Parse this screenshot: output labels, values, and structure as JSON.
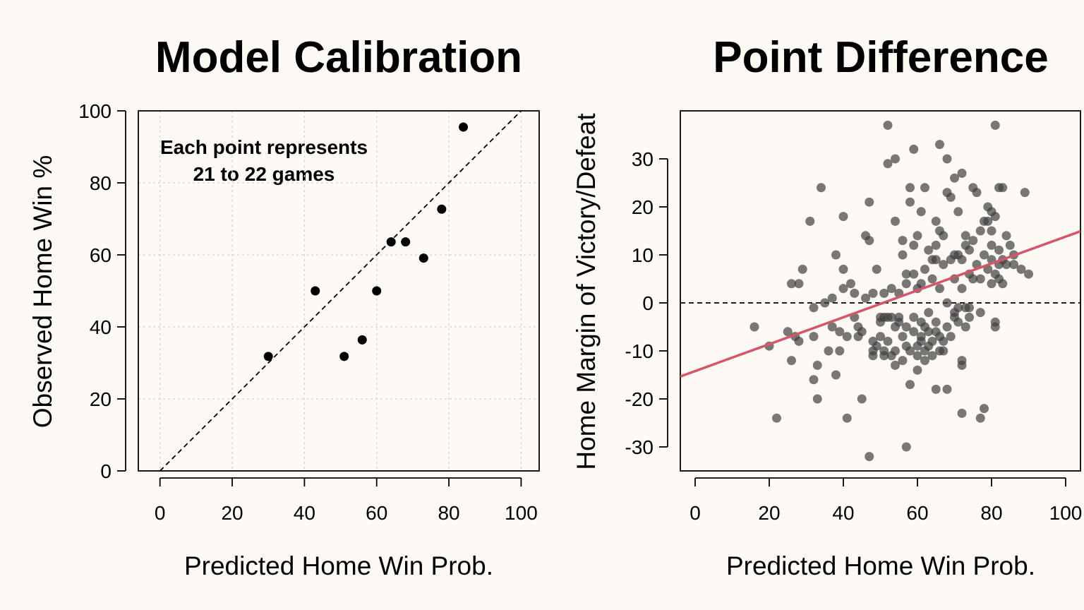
{
  "chart_data": [
    {
      "type": "scatter",
      "title": "Model Calibration",
      "xlabel": "Predicted Home Win Prob.",
      "ylabel": "Observed Home Win %",
      "xlim": [
        -6,
        105
      ],
      "ylim": [
        0,
        100
      ],
      "xticks": [
        0,
        20,
        40,
        60,
        80,
        100
      ],
      "yticks": [
        0,
        20,
        40,
        60,
        80,
        100
      ],
      "grid": true,
      "reference_line": {
        "type": "identity",
        "style": "dashed"
      },
      "annotation": [
        "Each point represents",
        "21 to 22 games"
      ],
      "colors": {
        "points": "#000000",
        "reference": "#000000",
        "grid": "#d3d3d3"
      },
      "points": [
        {
          "x": 30,
          "y": 31.8
        },
        {
          "x": 43,
          "y": 50
        },
        {
          "x": 51,
          "y": 31.8
        },
        {
          "x": 56,
          "y": 36.4
        },
        {
          "x": 60,
          "y": 50
        },
        {
          "x": 64,
          "y": 63.6
        },
        {
          "x": 68,
          "y": 63.6
        },
        {
          "x": 73,
          "y": 59.1
        },
        {
          "x": 78,
          "y": 72.7
        },
        {
          "x": 84,
          "y": 95.5
        }
      ]
    },
    {
      "type": "scatter",
      "title": "Point Difference",
      "xlabel": "Predicted Home Win Prob.",
      "ylabel": "Home Margin of Victory/Defeat",
      "xlim": [
        -4,
        104
      ],
      "ylim": [
        -35,
        40
      ],
      "xticks": [
        0,
        20,
        40,
        60,
        80,
        100
      ],
      "yticks": [
        -30,
        -20,
        -10,
        0,
        10,
        20,
        30
      ],
      "grid": false,
      "zero_line": {
        "y": 0,
        "style": "dashed"
      },
      "fit_line": {
        "slope": 0.28,
        "intercept": -14.2,
        "style": "solid"
      },
      "colors": {
        "points": "#404040",
        "fit": "#d7546a",
        "zero": "#000000"
      },
      "points": [
        {
          "x": 16,
          "y": -5
        },
        {
          "x": 20,
          "y": -9
        },
        {
          "x": 22,
          "y": -24
        },
        {
          "x": 25,
          "y": -6
        },
        {
          "x": 26,
          "y": -12
        },
        {
          "x": 26,
          "y": 4
        },
        {
          "x": 27,
          "y": -7
        },
        {
          "x": 28,
          "y": -8
        },
        {
          "x": 28,
          "y": 4
        },
        {
          "x": 29,
          "y": 7
        },
        {
          "x": 31,
          "y": 17
        },
        {
          "x": 32,
          "y": -1
        },
        {
          "x": 32,
          "y": -7
        },
        {
          "x": 32,
          "y": -16
        },
        {
          "x": 33,
          "y": -13
        },
        {
          "x": 33,
          "y": -20
        },
        {
          "x": 34,
          "y": 24
        },
        {
          "x": 35,
          "y": 0
        },
        {
          "x": 36,
          "y": -10
        },
        {
          "x": 37,
          "y": -5
        },
        {
          "x": 37,
          "y": 1
        },
        {
          "x": 38,
          "y": 10
        },
        {
          "x": 38,
          "y": -15
        },
        {
          "x": 39,
          "y": -10
        },
        {
          "x": 39,
          "y": -6
        },
        {
          "x": 40,
          "y": 3
        },
        {
          "x": 40,
          "y": 18
        },
        {
          "x": 40,
          "y": 7
        },
        {
          "x": 41,
          "y": -7
        },
        {
          "x": 41,
          "y": -24
        },
        {
          "x": 42,
          "y": 4
        },
        {
          "x": 43,
          "y": 2
        },
        {
          "x": 43,
          "y": -3
        },
        {
          "x": 44,
          "y": -7
        },
        {
          "x": 44,
          "y": -5
        },
        {
          "x": 45,
          "y": -6
        },
        {
          "x": 45,
          "y": -20
        },
        {
          "x": 46,
          "y": 14
        },
        {
          "x": 46,
          "y": 1
        },
        {
          "x": 47,
          "y": -32
        },
        {
          "x": 47,
          "y": 13
        },
        {
          "x": 47,
          "y": 21
        },
        {
          "x": 48,
          "y": -8
        },
        {
          "x": 48,
          "y": -10
        },
        {
          "x": 48,
          "y": 2
        },
        {
          "x": 48,
          "y": -11
        },
        {
          "x": 49,
          "y": -9
        },
        {
          "x": 49,
          "y": 7
        },
        {
          "x": 50,
          "y": -3
        },
        {
          "x": 50,
          "y": -7
        },
        {
          "x": 50,
          "y": -4
        },
        {
          "x": 51,
          "y": -11
        },
        {
          "x": 51,
          "y": -10
        },
        {
          "x": 51,
          "y": 2
        },
        {
          "x": 51,
          "y": -3
        },
        {
          "x": 52,
          "y": 29
        },
        {
          "x": 52,
          "y": 37
        },
        {
          "x": 52,
          "y": -8
        },
        {
          "x": 52,
          "y": -3
        },
        {
          "x": 53,
          "y": -3
        },
        {
          "x": 53,
          "y": -11
        },
        {
          "x": 53,
          "y": 3
        },
        {
          "x": 54,
          "y": 30
        },
        {
          "x": 54,
          "y": 17
        },
        {
          "x": 54,
          "y": -10
        },
        {
          "x": 54,
          "y": -5
        },
        {
          "x": 54,
          "y": -13
        },
        {
          "x": 55,
          "y": -3
        },
        {
          "x": 55,
          "y": 2
        },
        {
          "x": 55,
          "y": -4
        },
        {
          "x": 56,
          "y": 10
        },
        {
          "x": 56,
          "y": -7
        },
        {
          "x": 56,
          "y": -12
        },
        {
          "x": 56,
          "y": 13
        },
        {
          "x": 57,
          "y": -30
        },
        {
          "x": 57,
          "y": -5
        },
        {
          "x": 57,
          "y": 4
        },
        {
          "x": 57,
          "y": -9
        },
        {
          "x": 57,
          "y": 6
        },
        {
          "x": 58,
          "y": 21
        },
        {
          "x": 58,
          "y": 24
        },
        {
          "x": 58,
          "y": -17
        },
        {
          "x": 58,
          "y": -10
        },
        {
          "x": 59,
          "y": 6
        },
        {
          "x": 59,
          "y": 12
        },
        {
          "x": 59,
          "y": -3
        },
        {
          "x": 59,
          "y": -6
        },
        {
          "x": 59,
          "y": 32
        },
        {
          "x": 60,
          "y": -14
        },
        {
          "x": 60,
          "y": 14
        },
        {
          "x": 60,
          "y": -9
        },
        {
          "x": 60,
          "y": -11
        },
        {
          "x": 60,
          "y": 3
        },
        {
          "x": 61,
          "y": 19
        },
        {
          "x": 61,
          "y": -4
        },
        {
          "x": 61,
          "y": -7
        },
        {
          "x": 61,
          "y": -8
        },
        {
          "x": 61,
          "y": 4
        },
        {
          "x": 62,
          "y": 24
        },
        {
          "x": 62,
          "y": -12
        },
        {
          "x": 62,
          "y": -10
        },
        {
          "x": 62,
          "y": 7
        },
        {
          "x": 62,
          "y": -5
        },
        {
          "x": 63,
          "y": -2
        },
        {
          "x": 63,
          "y": -6
        },
        {
          "x": 63,
          "y": -9
        },
        {
          "x": 63,
          "y": 11
        },
        {
          "x": 64,
          "y": 9
        },
        {
          "x": 64,
          "y": 5
        },
        {
          "x": 64,
          "y": -8
        },
        {
          "x": 64,
          "y": -11
        },
        {
          "x": 65,
          "y": 17
        },
        {
          "x": 65,
          "y": -4
        },
        {
          "x": 65,
          "y": 9
        },
        {
          "x": 65,
          "y": 12
        },
        {
          "x": 65,
          "y": -6
        },
        {
          "x": 65,
          "y": -18
        },
        {
          "x": 66,
          "y": 33
        },
        {
          "x": 66,
          "y": 3
        },
        {
          "x": 66,
          "y": -7
        },
        {
          "x": 66,
          "y": -10
        },
        {
          "x": 66,
          "y": 15
        },
        {
          "x": 67,
          "y": 8
        },
        {
          "x": 67,
          "y": -8
        },
        {
          "x": 67,
          "y": -10
        },
        {
          "x": 67,
          "y": 14
        },
        {
          "x": 68,
          "y": 30
        },
        {
          "x": 68,
          "y": 23
        },
        {
          "x": 68,
          "y": -5
        },
        {
          "x": 68,
          "y": 0
        },
        {
          "x": 68,
          "y": -18
        },
        {
          "x": 69,
          "y": 9
        },
        {
          "x": 69,
          "y": -7
        },
        {
          "x": 69,
          "y": 22
        },
        {
          "x": 70,
          "y": 26
        },
        {
          "x": 70,
          "y": 10
        },
        {
          "x": 70,
          "y": -2
        },
        {
          "x": 70,
          "y": -3
        },
        {
          "x": 70,
          "y": 5
        },
        {
          "x": 71,
          "y": -1
        },
        {
          "x": 71,
          "y": 19
        },
        {
          "x": 71,
          "y": 10
        },
        {
          "x": 71,
          "y": -4
        },
        {
          "x": 72,
          "y": 27
        },
        {
          "x": 72,
          "y": -12
        },
        {
          "x": 72,
          "y": -23
        },
        {
          "x": 72,
          "y": -13
        },
        {
          "x": 72,
          "y": 3
        },
        {
          "x": 72,
          "y": 9
        },
        {
          "x": 73,
          "y": 14
        },
        {
          "x": 73,
          "y": -1
        },
        {
          "x": 73,
          "y": -5
        },
        {
          "x": 73,
          "y": 12
        },
        {
          "x": 74,
          "y": 6
        },
        {
          "x": 74,
          "y": -3
        },
        {
          "x": 74,
          "y": -1
        },
        {
          "x": 74,
          "y": 11
        },
        {
          "x": 75,
          "y": 24
        },
        {
          "x": 75,
          "y": 13
        },
        {
          "x": 75,
          "y": 5
        },
        {
          "x": 76,
          "y": 23
        },
        {
          "x": 76,
          "y": 8
        },
        {
          "x": 77,
          "y": -24
        },
        {
          "x": 77,
          "y": -2
        },
        {
          "x": 77,
          "y": 5
        },
        {
          "x": 77,
          "y": 15
        },
        {
          "x": 78,
          "y": -22
        },
        {
          "x": 78,
          "y": 10
        },
        {
          "x": 78,
          "y": 17
        },
        {
          "x": 79,
          "y": 7
        },
        {
          "x": 79,
          "y": 20
        },
        {
          "x": 79,
          "y": 17
        },
        {
          "x": 80,
          "y": 15
        },
        {
          "x": 80,
          "y": 19
        },
        {
          "x": 80,
          "y": 4
        },
        {
          "x": 80,
          "y": 9
        },
        {
          "x": 80,
          "y": 12
        },
        {
          "x": 81,
          "y": 6
        },
        {
          "x": 81,
          "y": 37
        },
        {
          "x": 81,
          "y": -4
        },
        {
          "x": 81,
          "y": -5
        },
        {
          "x": 81,
          "y": 18
        },
        {
          "x": 82,
          "y": 24
        },
        {
          "x": 82,
          "y": 11
        },
        {
          "x": 82,
          "y": 8
        },
        {
          "x": 82,
          "y": 5
        },
        {
          "x": 83,
          "y": 24
        },
        {
          "x": 83,
          "y": 4
        },
        {
          "x": 83,
          "y": 9
        },
        {
          "x": 84,
          "y": 8
        },
        {
          "x": 84,
          "y": 14
        },
        {
          "x": 85,
          "y": 12
        },
        {
          "x": 86,
          "y": 8
        },
        {
          "x": 86,
          "y": 10
        },
        {
          "x": 88,
          "y": 7
        },
        {
          "x": 89,
          "y": 23
        },
        {
          "x": 90,
          "y": 6
        }
      ]
    }
  ]
}
